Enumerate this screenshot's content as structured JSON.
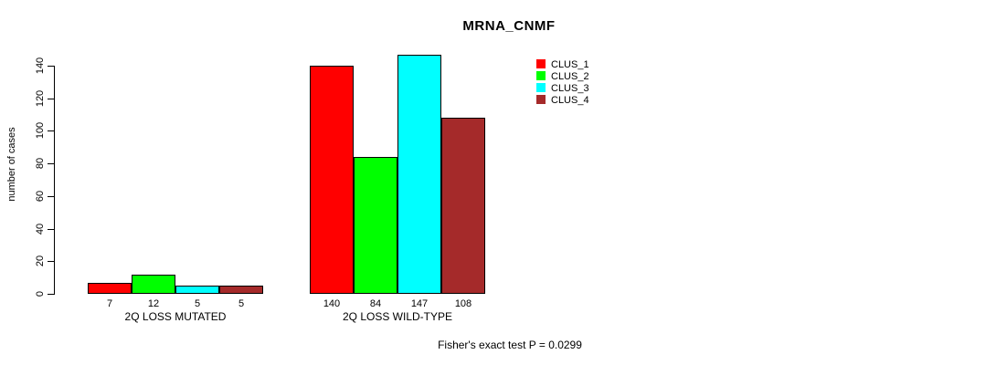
{
  "title": "MRNA_CNMF",
  "chart_data": {
    "type": "bar",
    "title": "MRNA_CNMF",
    "xlabel": "",
    "ylabel": "number of cases",
    "ylim": [
      0,
      140
    ],
    "yticks": [
      0,
      20,
      40,
      60,
      80,
      100,
      120,
      140
    ],
    "categories": [
      "2Q LOSS MUTATED",
      "2Q LOSS WILD-TYPE"
    ],
    "series": [
      {
        "name": "CLUS_1",
        "color": "#ff0000",
        "values": [
          7,
          140
        ]
      },
      {
        "name": "CLUS_2",
        "color": "#00ff00",
        "values": [
          12,
          84
        ]
      },
      {
        "name": "CLUS_3",
        "color": "#00ffff",
        "values": [
          5,
          147
        ]
      },
      {
        "name": "CLUS_4",
        "color": "#a52a2a",
        "values": [
          5,
          108
        ]
      }
    ],
    "bar_value_labels": [
      "7",
      "12",
      "5",
      "5",
      "140",
      "84",
      "147",
      "108"
    ],
    "legend_position": "top-right",
    "grid": false,
    "annotation": "Fisher's exact test P = 0.0299"
  },
  "legend": {
    "items": [
      {
        "label": "CLUS_1",
        "color": "#ff0000"
      },
      {
        "label": "CLUS_2",
        "color": "#00ff00"
      },
      {
        "label": "CLUS_3",
        "color": "#00ffff"
      },
      {
        "label": "CLUS_4",
        "color": "#a52a2a"
      }
    ]
  }
}
